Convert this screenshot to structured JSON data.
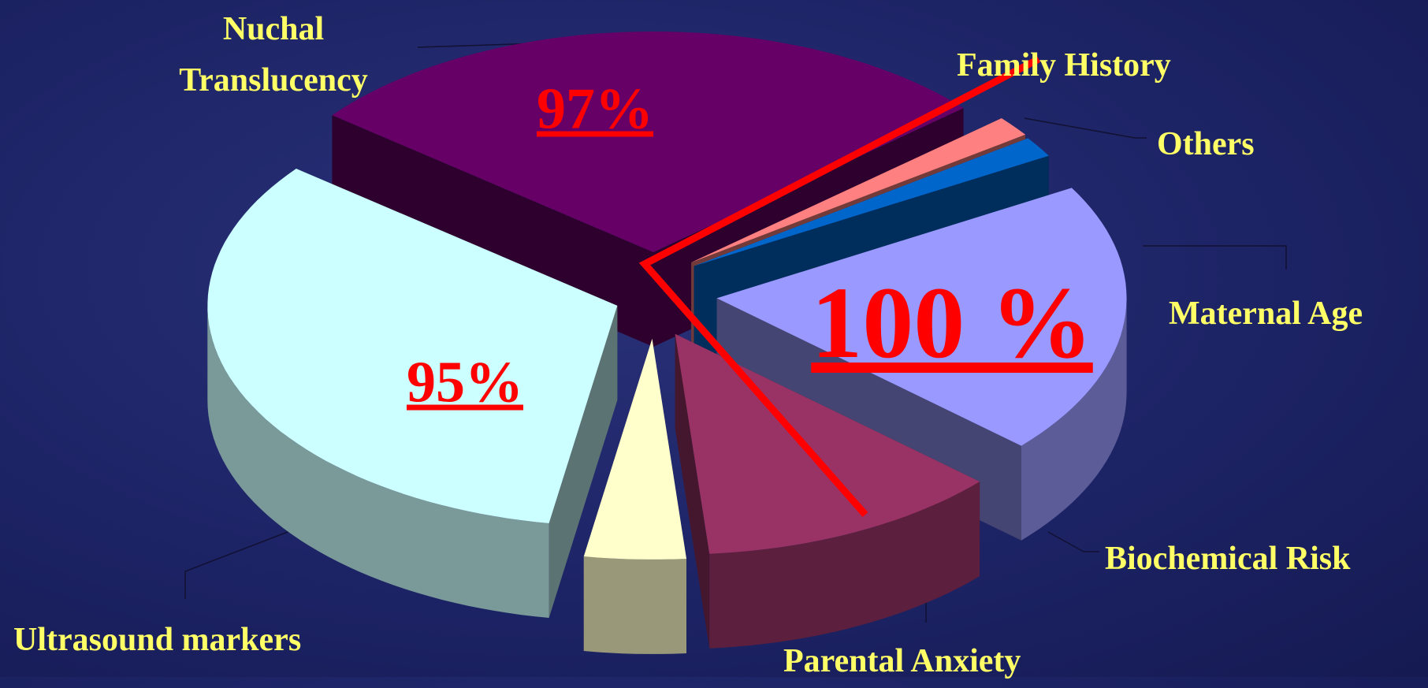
{
  "chart_data": {
    "type": "pie",
    "categories": [
      "Maternal Age",
      "Biochemical Risk",
      "Parental Anxiety",
      "Ultrasound markers",
      "Nuchal Translucency",
      "Family History",
      "Others"
    ],
    "values": [
      20,
      12,
      4,
      33,
      28,
      1.5,
      1.5
    ],
    "colors": [
      "#9999ff",
      "#993366",
      "#ffffcc",
      "#ccffff",
      "#660066",
      "#ff8080",
      "#0066cc"
    ],
    "annotations": [
      "97%",
      "95%",
      "100 %"
    ]
  }
}
